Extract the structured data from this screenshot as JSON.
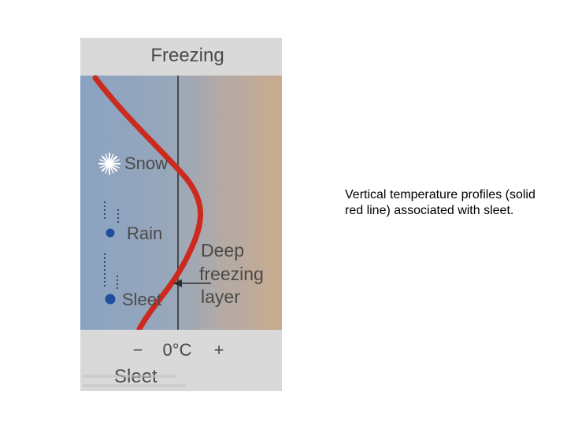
{
  "diagram": {
    "header_label": "Freezing",
    "labels": {
      "snow": "Snow",
      "rain": "Rain",
      "sleet": "Sleet",
      "deep_freezing_line1": "Deep",
      "deep_freezing_line2": "freezing",
      "deep_freezing_line3": "layer"
    },
    "axis": {
      "minus": "−",
      "zero": "0°C",
      "plus": "+"
    },
    "footer_title": "Sleet",
    "colors": {
      "profile_line": "#cc2a1e",
      "cold_side": "#8ca2bf",
      "warm_side": "#c8aa8d",
      "panel": "#d8d8d8",
      "drop": "#1f4e9c",
      "text": "#4a4a4a"
    },
    "icons": [
      "snowflake-icon",
      "raindrop-icon",
      "sleet-pellet-icon",
      "arrow-left-icon"
    ]
  },
  "caption": "Vertical temperature profiles (solid red line) associated with sleet."
}
